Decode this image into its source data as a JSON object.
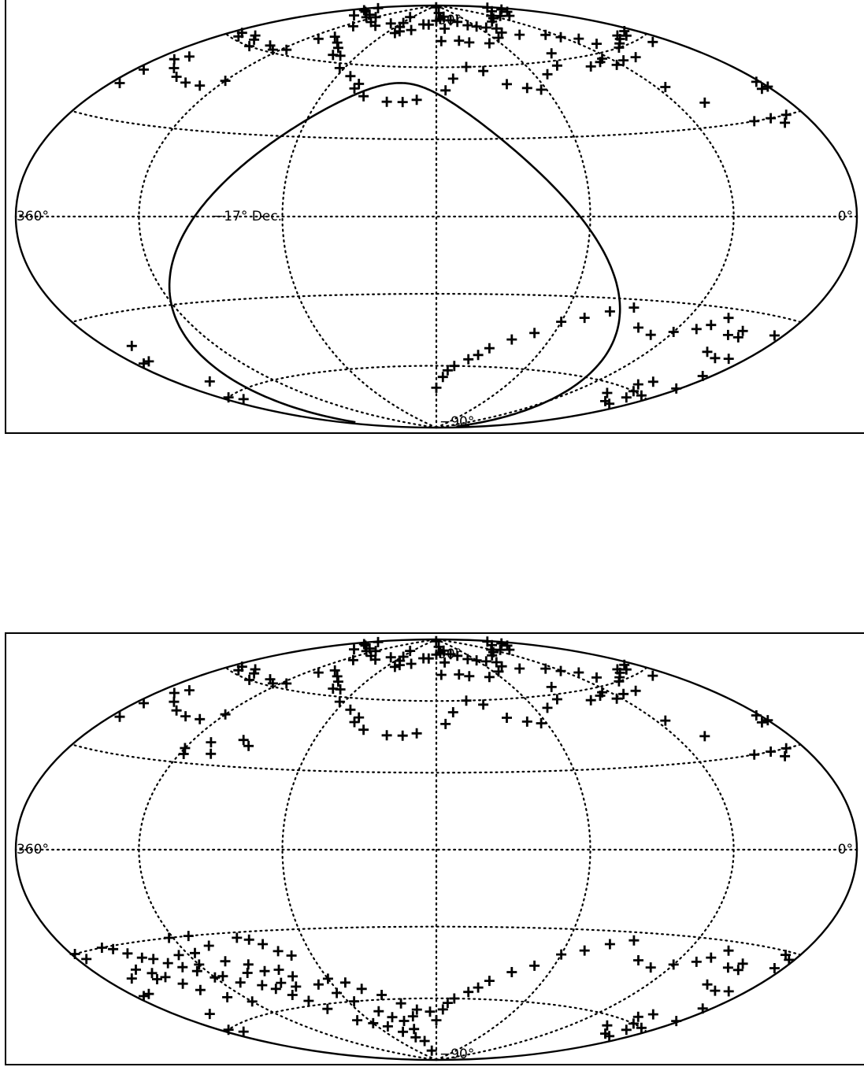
{
  "chart_data": [
    {
      "type": "scatter",
      "projection": "hammer-aitoff equatorial",
      "marker": "plus",
      "marker_color": "#000000",
      "labels": {
        "pole_north": "90°",
        "pole_south": "−90°",
        "left_edge": "360°",
        "right_edge": "0°",
        "dec_curve": "−17° Dec."
      },
      "grid": true,
      "points": [
        [
          168,
          78
        ],
        [
          171,
          83
        ],
        [
          182,
          89
        ],
        [
          175,
          72
        ],
        [
          157,
          72
        ],
        [
          148,
          71
        ],
        [
          130,
          70
        ],
        [
          115,
          72
        ],
        [
          103,
          74
        ],
        [
          90,
          72
        ],
        [
          68,
          70
        ],
        [
          61,
          68
        ],
        [
          51,
          66
        ],
        [
          48,
          63
        ],
        [
          54,
          56
        ],
        [
          63,
          55
        ],
        [
          43,
          56
        ],
        [
          40,
          60
        ],
        [
          33,
          61
        ],
        [
          25,
          62
        ],
        [
          20,
          63
        ],
        [
          15,
          62
        ],
        [
          11,
          58
        ],
        [
          7,
          63
        ],
        [
          353,
          62
        ],
        [
          348,
          61
        ],
        [
          340,
          63
        ],
        [
          333,
          62
        ],
        [
          325,
          60
        ],
        [
          313,
          62
        ],
        [
          305,
          61
        ],
        [
          296,
          62
        ],
        [
          291,
          68
        ],
        [
          290,
          75
        ],
        [
          285,
          78
        ],
        [
          268,
          77
        ],
        [
          255,
          79
        ],
        [
          245,
          83
        ],
        [
          238,
          80
        ],
        [
          234,
          78
        ],
        [
          230,
          75
        ],
        [
          227,
          76
        ],
        [
          214,
          77
        ],
        [
          202,
          80
        ],
        [
          193,
          80
        ],
        [
          180,
          82
        ],
        [
          170,
          86
        ],
        [
          160,
          84
        ],
        [
          150,
          82
        ],
        [
          140,
          81
        ],
        [
          130,
          79
        ],
        [
          120,
          78
        ],
        [
          110,
          77
        ],
        [
          100,
          76
        ],
        [
          85,
          79
        ],
        [
          70,
          80
        ],
        [
          60,
          81
        ],
        [
          50,
          80
        ],
        [
          40,
          79
        ],
        [
          30,
          82
        ],
        [
          20,
          80
        ],
        [
          10,
          81
        ],
        [
          5,
          83
        ],
        [
          355,
          82
        ],
        [
          350,
          80
        ],
        [
          340,
          80
        ],
        [
          330,
          78
        ],
        [
          320,
          80
        ],
        [
          310,
          79
        ],
        [
          300,
          80
        ],
        [
          282,
          70
        ],
        [
          270,
          68
        ],
        [
          262,
          66
        ],
        [
          258,
          63
        ],
        [
          252,
          63
        ],
        [
          243,
          58
        ],
        [
          232,
          55
        ],
        [
          225,
          50
        ],
        [
          224,
          52
        ],
        [
          218,
          47
        ],
        [
          205,
          45
        ],
        [
          197,
          45
        ],
        [
          190,
          46
        ],
        [
          175,
          50
        ],
        [
          170,
          55
        ],
        [
          160,
          60
        ],
        [
          150,
          58
        ],
        [
          140,
          52
        ],
        [
          130,
          50
        ],
        [
          123,
          49
        ],
        [
          112,
          55
        ],
        [
          100,
          58
        ],
        [
          92,
          63
        ],
        [
          80,
          56
        ],
        [
          70,
          57
        ],
        [
          65,
          58
        ],
        [
          55,
          45
        ],
        [
          45,
          38
        ],
        [
          30,
          30
        ],
        [
          20,
          30
        ],
        [
          15,
          28
        ],
        [
          10,
          30
        ],
        [
          5,
          38
        ],
        [
          355,
          45
        ],
        [
          350,
          50
        ],
        [
          345,
          52
        ],
        [
          340,
          48
        ],
        [
          330,
          46
        ],
        [
          320,
          45
        ],
        [
          310,
          45
        ],
        [
          300,
          48
        ],
        [
          0,
          38
        ],
        [
          2,
          40
        ],
        [
          355,
          40
        ],
        [
          180,
          -70
        ],
        [
          175,
          -65
        ],
        [
          172,
          -62
        ],
        [
          168,
          -60
        ],
        [
          160,
          -57
        ],
        [
          155,
          -55
        ],
        [
          150,
          -52
        ],
        [
          140,
          -48
        ],
        [
          130,
          -45
        ],
        [
          120,
          -40
        ],
        [
          110,
          -38
        ],
        [
          100,
          -35
        ],
        [
          90,
          -33
        ],
        [
          80,
          -40
        ],
        [
          70,
          -42
        ],
        [
          60,
          -40
        ],
        [
          50,
          -38
        ],
        [
          45,
          -36
        ],
        [
          40,
          -33
        ],
        [
          30,
          -38
        ],
        [
          28,
          -44
        ],
        [
          25,
          -36
        ],
        [
          23,
          -38
        ],
        [
          18,
          -45
        ],
        [
          10,
          -44
        ],
        [
          5,
          -35
        ],
        [
          5,
          -50
        ],
        [
          2,
          -55
        ],
        [
          355,
          -45
        ],
        [
          350,
          -45
        ],
        [
          345,
          -40
        ],
        [
          10,
          -60
        ],
        [
          12,
          -65
        ],
        [
          15,
          -62
        ],
        [
          20,
          -65
        ],
        [
          22,
          -60
        ],
        [
          25,
          -56
        ],
        [
          30,
          -58
        ],
        [
          35,
          -63
        ],
        [
          340,
          -55
        ],
        [
          355,
          -60
        ],
        [
          350,
          -62
        ]
      ]
    },
    {
      "type": "scatter",
      "projection": "hammer-aitoff equatorial",
      "marker": "plus",
      "marker_color": "#000000",
      "labels": {
        "pole_north": "90°",
        "pole_south": "−90°",
        "left_edge": "360°",
        "right_edge": "0°"
      },
      "grid": true,
      "points": [
        [
          168,
          78
        ],
        [
          171,
          83
        ],
        [
          182,
          89
        ],
        [
          175,
          72
        ],
        [
          157,
          72
        ],
        [
          148,
          71
        ],
        [
          130,
          70
        ],
        [
          115,
          72
        ],
        [
          103,
          74
        ],
        [
          90,
          72
        ],
        [
          68,
          70
        ],
        [
          61,
          68
        ],
        [
          51,
          66
        ],
        [
          48,
          63
        ],
        [
          54,
          56
        ],
        [
          63,
          55
        ],
        [
          43,
          56
        ],
        [
          40,
          60
        ],
        [
          33,
          61
        ],
        [
          25,
          62
        ],
        [
          20,
          63
        ],
        [
          15,
          62
        ],
        [
          11,
          58
        ],
        [
          7,
          63
        ],
        [
          353,
          62
        ],
        [
          348,
          61
        ],
        [
          340,
          63
        ],
        [
          333,
          62
        ],
        [
          325,
          60
        ],
        [
          313,
          62
        ],
        [
          305,
          61
        ],
        [
          296,
          62
        ],
        [
          291,
          68
        ],
        [
          290,
          75
        ],
        [
          285,
          78
        ],
        [
          268,
          77
        ],
        [
          255,
          79
        ],
        [
          245,
          83
        ],
        [
          238,
          80
        ],
        [
          234,
          78
        ],
        [
          230,
          75
        ],
        [
          227,
          76
        ],
        [
          214,
          77
        ],
        [
          202,
          80
        ],
        [
          193,
          80
        ],
        [
          180,
          82
        ],
        [
          170,
          86
        ],
        [
          160,
          84
        ],
        [
          150,
          82
        ],
        [
          140,
          81
        ],
        [
          130,
          79
        ],
        [
          120,
          78
        ],
        [
          110,
          77
        ],
        [
          100,
          76
        ],
        [
          85,
          79
        ],
        [
          70,
          80
        ],
        [
          60,
          81
        ],
        [
          50,
          80
        ],
        [
          40,
          79
        ],
        [
          30,
          82
        ],
        [
          20,
          80
        ],
        [
          10,
          81
        ],
        [
          5,
          83
        ],
        [
          355,
          82
        ],
        [
          350,
          80
        ],
        [
          340,
          80
        ],
        [
          330,
          78
        ],
        [
          320,
          80
        ],
        [
          310,
          79
        ],
        [
          300,
          80
        ],
        [
          282,
          70
        ],
        [
          270,
          68
        ],
        [
          262,
          66
        ],
        [
          258,
          63
        ],
        [
          252,
          63
        ],
        [
          243,
          58
        ],
        [
          232,
          55
        ],
        [
          225,
          50
        ],
        [
          224,
          52
        ],
        [
          218,
          47
        ],
        [
          205,
          45
        ],
        [
          197,
          45
        ],
        [
          190,
          46
        ],
        [
          175,
          50
        ],
        [
          170,
          55
        ],
        [
          160,
          60
        ],
        [
          150,
          58
        ],
        [
          140,
          52
        ],
        [
          130,
          50
        ],
        [
          123,
          49
        ],
        [
          112,
          55
        ],
        [
          100,
          58
        ],
        [
          92,
          63
        ],
        [
          80,
          56
        ],
        [
          70,
          57
        ],
        [
          65,
          58
        ],
        [
          55,
          45
        ],
        [
          45,
          38
        ],
        [
          30,
          30
        ],
        [
          20,
          30
        ],
        [
          15,
          28
        ],
        [
          10,
          30
        ],
        [
          5,
          38
        ],
        [
          355,
          45
        ],
        [
          350,
          50
        ],
        [
          345,
          52
        ],
        [
          340,
          48
        ],
        [
          330,
          46
        ],
        [
          320,
          45
        ],
        [
          310,
          45
        ],
        [
          300,
          48
        ],
        [
          0,
          38
        ],
        [
          2,
          40
        ],
        [
          355,
          40
        ],
        [
          300,
          35
        ],
        [
          298,
          33
        ],
        [
          290,
          38
        ],
        [
          285,
          34
        ],
        [
          275,
          40
        ],
        [
          270,
          38
        ],
        [
          180,
          -70
        ],
        [
          175,
          -65
        ],
        [
          172,
          -62
        ],
        [
          168,
          -60
        ],
        [
          160,
          -57
        ],
        [
          155,
          -55
        ],
        [
          150,
          -52
        ],
        [
          140,
          -48
        ],
        [
          130,
          -45
        ],
        [
          120,
          -40
        ],
        [
          110,
          -38
        ],
        [
          100,
          -35
        ],
        [
          90,
          -33
        ],
        [
          80,
          -40
        ],
        [
          70,
          -42
        ],
        [
          60,
          -40
        ],
        [
          50,
          -38
        ],
        [
          45,
          -36
        ],
        [
          40,
          -33
        ],
        [
          30,
          -38
        ],
        [
          28,
          -44
        ],
        [
          25,
          -36
        ],
        [
          23,
          -38
        ],
        [
          18,
          -45
        ],
        [
          10,
          -44
        ],
        [
          5,
          -35
        ],
        [
          5,
          -50
        ],
        [
          2,
          -55
        ],
        [
          355,
          -45
        ],
        [
          350,
          -45
        ],
        [
          345,
          -40
        ],
        [
          10,
          -60
        ],
        [
          12,
          -65
        ],
        [
          15,
          -62
        ],
        [
          20,
          -65
        ],
        [
          22,
          -60
        ],
        [
          25,
          -56
        ],
        [
          30,
          -58
        ],
        [
          35,
          -63
        ],
        [
          340,
          -55
        ],
        [
          355,
          -60
        ],
        [
          350,
          -62
        ],
        [
          358,
          -30
        ],
        [
          3,
          -32
        ],
        [
          8,
          -31
        ],
        [
          355,
          -32
        ],
        [
          195,
          -85
        ],
        [
          200,
          -80
        ],
        [
          210,
          -78
        ],
        [
          220,
          -75
        ],
        [
          230,
          -72
        ],
        [
          240,
          -70
        ],
        [
          250,
          -68
        ],
        [
          260,
          -62
        ],
        [
          265,
          -58
        ],
        [
          270,
          -55
        ],
        [
          275,
          -52
        ],
        [
          280,
          -50
        ],
        [
          290,
          -48
        ],
        [
          295,
          -45
        ],
        [
          300,
          -45
        ],
        [
          305,
          -42
        ],
        [
          310,
          -40
        ],
        [
          315,
          -38
        ],
        [
          320,
          -36
        ],
        [
          325,
          -35
        ],
        [
          330,
          -33
        ],
        [
          335,
          -31
        ],
        [
          340,
          -30
        ],
        [
          250,
          -40
        ],
        [
          255,
          -38
        ],
        [
          260,
          -35
        ],
        [
          265,
          -33
        ],
        [
          270,
          -32
        ],
        [
          240,
          -50
        ],
        [
          232,
          -52
        ],
        [
          225,
          -55
        ],
        [
          215,
          -58
        ],
        [
          205,
          -62
        ],
        [
          195,
          -65
        ],
        [
          185,
          -66
        ],
        [
          262,
          -45
        ],
        [
          258,
          -48
        ],
        [
          248,
          -52
        ],
        [
          242,
          -56
        ],
        [
          236,
          -60
        ],
        [
          225,
          -65
        ],
        [
          218,
          -68
        ],
        [
          210,
          -70
        ],
        [
          205,
          -74
        ],
        [
          200,
          -68
        ],
        [
          300,
          -55
        ],
        [
          310,
          -52
        ],
        [
          318,
          -48
        ],
        [
          322,
          -45
        ],
        [
          326,
          -42
        ],
        [
          330,
          -40
        ],
        [
          332,
          -42
        ],
        [
          336,
          -38
        ],
        [
          285,
          -40
        ],
        [
          280,
          -45
        ],
        [
          275,
          -42
        ],
        [
          270,
          -45
        ],
        [
          268,
          -50
        ],
        [
          262,
          -52
        ],
        [
          300,
          -40
        ],
        [
          305,
          -36
        ],
        [
          286,
          -34
        ],
        [
          292,
          -30
        ],
        [
          296,
          -36
        ],
        [
          302,
          -30
        ]
      ]
    }
  ]
}
